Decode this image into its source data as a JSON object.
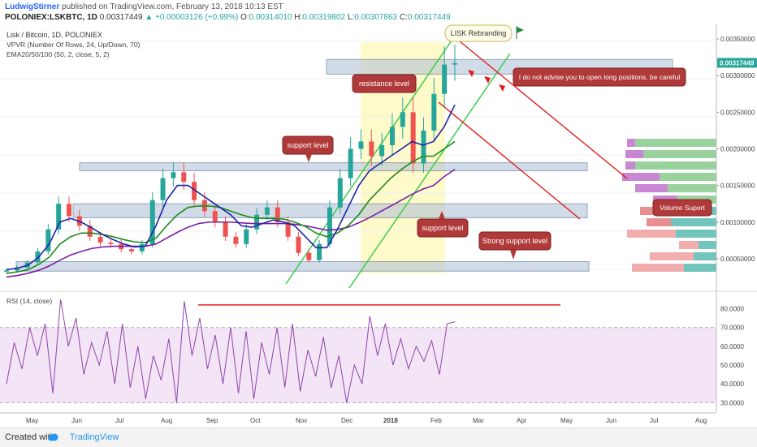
{
  "header": {
    "author": "LudwigStirner",
    "published_text": "published on TradingView.com, February 13, 2018 10:13 EST",
    "symbol": "POLONIEX:LSKBTC, 1D",
    "last": "0.00317449",
    "change": "▲ +0.00003126 (+0.99%)",
    "ohlc": {
      "o_label": "O:",
      "o": "0.00314010",
      "h_label": "H:",
      "h": "0.00319802",
      "l_label": "L:",
      "l": "0.00307863",
      "c_label": "C:",
      "c": "0.00317449"
    }
  },
  "legend": {
    "title": "Lisk / Bitcoin, 1D, POLONIEX",
    "vpvr": "VPVR (Number Of Rows, 24, Up/Down, 70)",
    "ema": "EMA20/50/100 (50, 2, close, 5, 2)",
    "rsi": "RSI (14, close)"
  },
  "annotations": {
    "lsk_rebranding": "LISK Rebranding",
    "resistance": "resistance level",
    "support1": "support level",
    "support2": "support level",
    "strong_support": "Strong support level",
    "warning": "I do not advise you to open long positions. be careful",
    "volume": "Volume Suport"
  },
  "colors": {
    "up": "#26a69a",
    "down": "#ef5350",
    "ema20": "#1e22aa",
    "ema50": "#1b8a1b",
    "ema100": "#7b1fa2",
    "rsi": "#8e44ad",
    "trend": "#2ecc40",
    "red_line": "#e01e1e",
    "zone": "#aebfd6",
    "label_bg": "#b03a3a",
    "highlight": "#fff9c4"
  },
  "footer": {
    "created_with": "Created with",
    "brand": "TradingView"
  },
  "chart_data": {
    "type": "line",
    "price_axis": {
      "ticks": [
        "0.00350000",
        "0.00300000",
        "0.00250000",
        "0.00200000",
        "0.00150000",
        "0.00100000",
        "0.00050000"
      ],
      "last_label": "0.00317449",
      "range": [
        0.0001,
        0.0037
      ]
    },
    "rsi_axis": {
      "ticks": [
        "80.0000",
        "70.0000",
        "60.0000",
        "50.0000",
        "40.0000",
        "30.0000"
      ],
      "range": [
        25,
        88
      ]
    },
    "x_ticks": [
      "May",
      "Jun",
      "Jul",
      "Aug",
      "Sep",
      "Oct",
      "Nov",
      "Dec",
      "2018",
      "Feb",
      "Mar",
      "Apr",
      "May",
      "Jun",
      "Jul",
      "Aug"
    ],
    "price": [
      0.00034,
      0.00038,
      0.00045,
      0.0006,
      0.0009,
      0.00125,
      0.00108,
      0.00095,
      0.0008,
      0.00072,
      0.0007,
      0.00063,
      0.0006,
      0.0007,
      0.0013,
      0.0016,
      0.00168,
      0.00155,
      0.0013,
      0.00115,
      0.001,
      0.0008,
      0.0007,
      0.0009,
      0.0011,
      0.0012,
      0.001,
      0.0008,
      0.00058,
      0.00048,
      0.0007,
      0.0012,
      0.0016,
      0.002,
      0.0021,
      0.0019,
      0.00205,
      0.0023,
      0.0025,
      0.0018,
      0.00225,
      0.00275,
      0.00315,
      0.00317
    ],
    "ema20": [
      0.00035,
      0.00037,
      0.00041,
      0.00052,
      0.0007,
      0.001,
      0.00105,
      0.001,
      0.00092,
      0.00083,
      0.00076,
      0.0007,
      0.00066,
      0.00067,
      0.00095,
      0.0013,
      0.0015,
      0.0015,
      0.0014,
      0.0013,
      0.0012,
      0.0011,
      0.00095,
      0.00093,
      0.00098,
      0.00103,
      0.001,
      0.00095,
      0.0008,
      0.00065,
      0.00065,
      0.0009,
      0.0012,
      0.0015,
      0.0017,
      0.0018,
      0.0019,
      0.002,
      0.0021,
      0.00205,
      0.0021,
      0.0023,
      0.0026
    ],
    "ema50": [
      0.0003,
      0.00032,
      0.00035,
      0.00042,
      0.00052,
      0.0007,
      0.0008,
      0.00085,
      0.00085,
      0.00083,
      0.0008,
      0.00076,
      0.00073,
      0.00072,
      0.00078,
      0.00095,
      0.0011,
      0.0012,
      0.00122,
      0.00122,
      0.0012,
      0.00115,
      0.0011,
      0.00106,
      0.00105,
      0.00105,
      0.00104,
      0.001,
      0.00094,
      0.00085,
      0.0008,
      0.00085,
      0.00095,
      0.0011,
      0.0013,
      0.00145,
      0.0016,
      0.00172,
      0.00182,
      0.0019,
      0.0019,
      0.002,
      0.0021
    ],
    "ema100": [
      0.00025,
      0.00027,
      0.0003,
      0.00034,
      0.0004,
      0.00048,
      0.00055,
      0.0006,
      0.00064,
      0.00066,
      0.00067,
      0.00067,
      0.00067,
      0.00067,
      0.0007,
      0.00078,
      0.00086,
      0.00093,
      0.00098,
      0.001,
      0.001,
      0.001,
      0.00099,
      0.00098,
      0.00098,
      0.00098,
      0.00098,
      0.00097,
      0.00095,
      0.00092,
      0.00089,
      0.0009,
      0.00093,
      0.00099,
      0.00106,
      0.00114,
      0.00122,
      0.0013,
      0.00138,
      0.00145,
      0.0015,
      0.00162,
      0.00172
    ],
    "rsi": [
      40,
      62,
      48,
      70,
      55,
      72,
      35,
      85,
      60,
      75,
      45,
      62,
      50,
      68,
      40,
      72,
      38,
      60,
      32,
      55,
      42,
      64,
      30,
      84,
      55,
      75,
      48,
      66,
      40,
      70,
      35,
      68,
      32,
      62,
      45,
      70,
      38,
      72,
      36,
      58,
      44,
      65,
      38,
      55,
      30,
      50,
      40,
      76,
      55,
      72,
      50,
      64,
      48,
      60,
      52,
      63,
      45,
      72,
      73
    ],
    "zones": [
      {
        "from": 0.00302,
        "to": 0.00322,
        "name": "top"
      },
      {
        "from": 0.0017,
        "to": 0.00181,
        "name": "mid"
      },
      {
        "from": 0.00106,
        "to": 0.00125,
        "name": "low"
      },
      {
        "from": 0.00033,
        "to": 0.00046,
        "name": "bottom"
      }
    ],
    "rsi_levels": {
      "upper": 70,
      "lower": 30,
      "line": 82
    }
  }
}
